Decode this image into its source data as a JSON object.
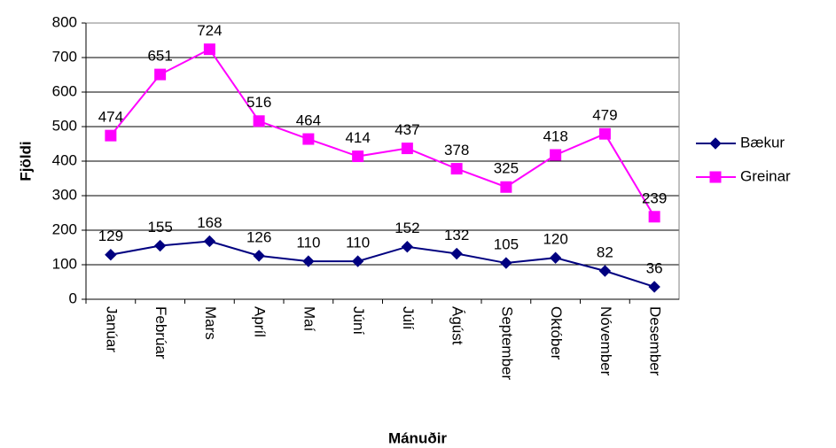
{
  "chart_data": {
    "type": "line",
    "categories": [
      "Janúar",
      "Febrúar",
      "Mars",
      "Apríl",
      "Maí",
      "Júní",
      "Júlí",
      "Ágúst",
      "September",
      "Október",
      "Nóvember",
      "Desember"
    ],
    "series": [
      {
        "name": "Bækur",
        "color": "#000080",
        "values": [
          129,
          155,
          168,
          126,
          110,
          110,
          152,
          132,
          105,
          120,
          82,
          36
        ]
      },
      {
        "name": "Greinar",
        "color": "#ff00ff",
        "values": [
          474,
          651,
          724,
          516,
          464,
          414,
          437,
          378,
          325,
          418,
          479,
          239
        ]
      }
    ],
    "xlabel": "Mánuðir",
    "ylabel": "Fjöldi",
    "ylim": [
      0,
      800
    ],
    "yticks": [
      0,
      100,
      200,
      300,
      400,
      500,
      600,
      700,
      800
    ],
    "grid": true,
    "legend": "right"
  }
}
